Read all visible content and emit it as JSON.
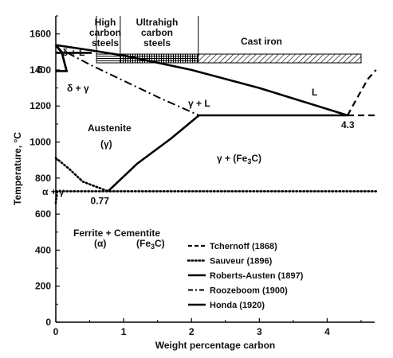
{
  "chart_data": {
    "type": "line",
    "xlabel": "Weight percentage carbon",
    "ylabel": "Temperature, °C",
    "xlim": [
      0,
      4.7
    ],
    "ylim": [
      0,
      1700
    ],
    "x_ticks": [
      "0",
      "1",
      "2",
      "3",
      "4"
    ],
    "y_ticks": [
      "0",
      "200",
      "400",
      "600",
      "800",
      "1000",
      "1200",
      "1400",
      "1600"
    ],
    "grid": false,
    "legend_position": "bottom-right",
    "top_bands": [
      {
        "label_lines": [
          "High",
          "carbon",
          "steels"
        ],
        "range": [
          0.6,
          0.95
        ],
        "fill": "horizontal-hatch"
      },
      {
        "label_lines": [
          "Ultrahigh",
          "carbon",
          "steels"
        ],
        "range": [
          0.95,
          2.1
        ],
        "fill": "crosshatch"
      },
      {
        "label_lines": [
          "Cast iron"
        ],
        "range": [
          2.1,
          4.5
        ],
        "fill": "diagonal-hatch"
      }
    ],
    "region_labels": [
      {
        "text": "δ + L"
      },
      {
        "text": "δ"
      },
      {
        "text": "δ + γ"
      },
      {
        "text": "γ + L"
      },
      {
        "text": "L"
      },
      {
        "text": "Austenite"
      },
      {
        "text": "(γ)"
      },
      {
        "text": "γ + (Fe3C)"
      },
      {
        "text": "α + γ"
      },
      {
        "text": "Ferrite + Cementite"
      },
      {
        "text": "(α)"
      },
      {
        "text": "(Fe3C)"
      }
    ],
    "point_labels": [
      {
        "text": "4.3",
        "x": 4.3,
        "y": 1148
      },
      {
        "text": "0.77",
        "x": 0.77,
        "y": 727
      }
    ],
    "series": [
      {
        "name": "Tchernoff (1868)",
        "style": "dashed",
        "segments": [
          [
            [
              4.3,
              1148
            ],
            [
              4.72,
              1148
            ]
          ],
          [
            [
              4.3,
              1148
            ],
            [
              4.45,
              1250
            ],
            [
              4.6,
              1350
            ],
            [
              4.72,
              1400
            ]
          ]
        ]
      },
      {
        "name": "Sauveur (1896)",
        "style": "dotted",
        "segments": [
          [
            [
              0,
              727
            ],
            [
              4.72,
              727
            ]
          ],
          [
            [
              0,
              912
            ],
            [
              0.2,
              850
            ],
            [
              0.4,
              780
            ],
            [
              0.77,
              727
            ]
          ],
          [
            [
              0,
              660
            ],
            [
              0.01,
              700
            ],
            [
              0.02,
              727
            ]
          ]
        ]
      },
      {
        "name": "Roberts-Austen (1897)",
        "style": "solid",
        "segments": [
          [
            [
              0,
              1538
            ],
            [
              0.5,
              1510
            ],
            [
              1.0,
              1480
            ],
            [
              2.0,
              1400
            ],
            [
              3.0,
              1300
            ],
            [
              4.3,
              1148
            ]
          ]
        ]
      },
      {
        "name": "Roozeboom (1900)",
        "style": "dash-dot",
        "segments": [
          [
            [
              0.17,
              1495
            ],
            [
              0.5,
              1430
            ],
            [
              1.0,
              1340
            ],
            [
              1.5,
              1250
            ],
            [
              2.11,
              1148
            ]
          ]
        ]
      },
      {
        "name": "Honda (1920)",
        "style": "solid",
        "segments": [
          [
            [
              2.11,
              1148
            ],
            [
              4.3,
              1148
            ]
          ],
          [
            [
              0.77,
              727
            ],
            [
              1.2,
              880
            ],
            [
              1.7,
              1020
            ],
            [
              2.11,
              1148
            ]
          ],
          [
            [
              0,
              1538
            ],
            [
              0.1,
              1495
            ],
            [
              0.17,
              1495
            ],
            [
              0.53,
              1495
            ]
          ],
          [
            [
              0,
              1495
            ],
            [
              0.09,
              1495
            ],
            [
              0.16,
              1394
            ],
            [
              0.05,
              1394
            ],
            [
              0,
              1394
            ]
          ],
          [
            [
              0,
              1538
            ],
            [
              0.09,
              1495
            ]
          ],
          [
            [
              0.09,
              1495
            ],
            [
              0.16,
              1394
            ]
          ]
        ]
      }
    ]
  }
}
